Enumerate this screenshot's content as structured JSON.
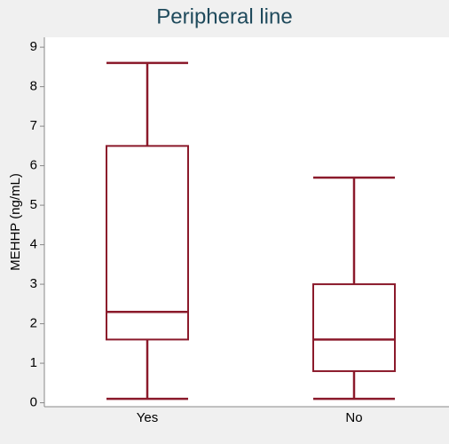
{
  "chart_data": {
    "type": "box",
    "title": "Peripheral line",
    "ylabel": "MEHHP (ng/mL)",
    "categories": [
      "Yes",
      "No"
    ],
    "boxes": [
      {
        "min": 0.1,
        "q1": 1.6,
        "median": 2.3,
        "q3": 6.5,
        "max": 8.6
      },
      {
        "min": 0.1,
        "q1": 0.8,
        "median": 1.6,
        "q3": 3.0,
        "max": 5.7
      }
    ],
    "color": "#8b1a2b",
    "ylim": [
      -0.1,
      9.25
    ],
    "yticks": [
      0,
      1,
      2,
      3,
      4,
      5,
      6,
      7,
      8,
      9
    ]
  }
}
